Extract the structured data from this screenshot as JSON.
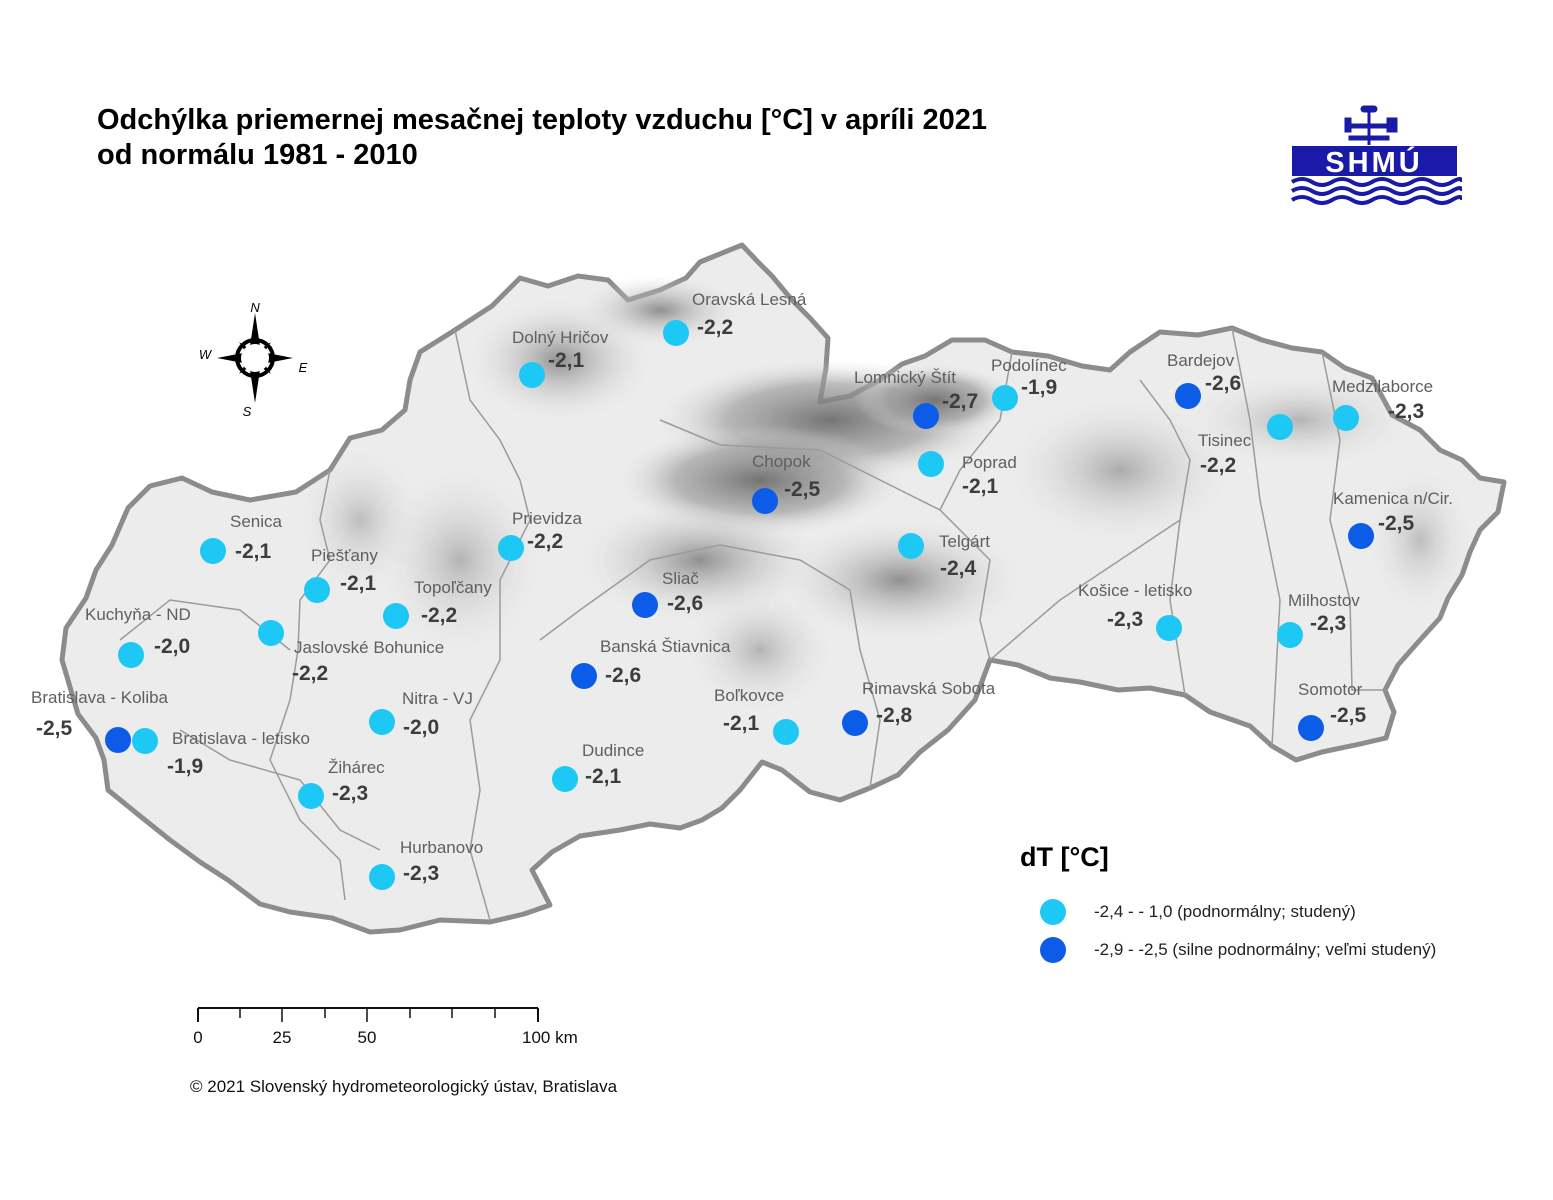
{
  "title": {
    "line1": "Odchýlka priemernej mesačnej teploty vzduchu [°C] v apríli 2021",
    "line2": "od normálu 1981 - 2010"
  },
  "logo": {
    "text": "SHMÚ"
  },
  "compass": {
    "n": "N",
    "s": "S",
    "e": "E",
    "w": "W"
  },
  "colors": {
    "cold": "#1ec8f5",
    "very_cold": "#0d5ce8"
  },
  "legend": {
    "title": "dT [°C]",
    "items": [
      {
        "label": "-2,4 - - 1,0 (podnormálny; studený)",
        "color": "#1ec8f5"
      },
      {
        "label": "-2,9 - -2,5 (silne podnormálny; veľmi studený)",
        "color": "#0d5ce8"
      }
    ]
  },
  "stations": [
    {
      "name": "Oravská Lesná",
      "value": "-2,2",
      "class": "cold"
    },
    {
      "name": "Dolný Hričov",
      "value": "-2,1",
      "class": "cold"
    },
    {
      "name": "Lomnický Štít",
      "value": "-2,7",
      "class": "very_cold"
    },
    {
      "name": "Podolínec",
      "value": "-1,9",
      "class": "cold"
    },
    {
      "name": "Bardejov",
      "value": "-2,6",
      "class": "very_cold"
    },
    {
      "name": "Medzilaborce",
      "value": "-2,3",
      "class": "cold"
    },
    {
      "name": "Tisinec",
      "value": "-2,2",
      "class": "cold"
    },
    {
      "name": "Poprad",
      "value": "-2,1",
      "class": "cold"
    },
    {
      "name": "Chopok",
      "value": "-2,5",
      "class": "very_cold"
    },
    {
      "name": "Kamenica n/Cir.",
      "value": "-2,5",
      "class": "very_cold"
    },
    {
      "name": "Senica",
      "value": "-2,1",
      "class": "cold"
    },
    {
      "name": "Prievidza",
      "value": "-2,2",
      "class": "cold"
    },
    {
      "name": "Telgárt",
      "value": "-2,4",
      "class": "cold"
    },
    {
      "name": "Piešťany",
      "value": "-2,1",
      "class": "cold"
    },
    {
      "name": "Topoľčany",
      "value": "-2,2",
      "class": "cold"
    },
    {
      "name": "Sliač",
      "value": "-2,6",
      "class": "very_cold"
    },
    {
      "name": "Košice - letisko",
      "value": "-2,3",
      "class": "cold"
    },
    {
      "name": "Milhostov",
      "value": "-2,3",
      "class": "cold"
    },
    {
      "name": "Kuchyňa - ND",
      "value": "-2,0",
      "class": "cold"
    },
    {
      "name": "Jaslovské Bohunice",
      "value": "-2,2",
      "class": "cold"
    },
    {
      "name": "Banská Štiavnica",
      "value": "-2,6",
      "class": "very_cold"
    },
    {
      "name": "Bratislava - Koliba",
      "value": "-2,5",
      "class": "very_cold"
    },
    {
      "name": "Nitra - VJ",
      "value": "-2,0",
      "class": "cold"
    },
    {
      "name": "Boľkovce",
      "value": "-2,1",
      "class": "cold"
    },
    {
      "name": "Rimavská Sobota",
      "value": "-2,8",
      "class": "very_cold"
    },
    {
      "name": "Somotor",
      "value": "-2,5",
      "class": "very_cold"
    },
    {
      "name": "Bratislava - letisko",
      "value": "-1,9",
      "class": "cold"
    },
    {
      "name": "Žihárec",
      "value": "-2,3",
      "class": "cold"
    },
    {
      "name": "Dudince",
      "value": "-2,1",
      "class": "cold"
    },
    {
      "name": "Hurbanovo",
      "value": "-2,3",
      "class": "cold"
    }
  ],
  "scalebar": {
    "labels": [
      "0",
      "25",
      "50",
      "100 km"
    ]
  },
  "copyright": "© 2021 Slovenský hydrometeorologický ústav, Bratislava"
}
